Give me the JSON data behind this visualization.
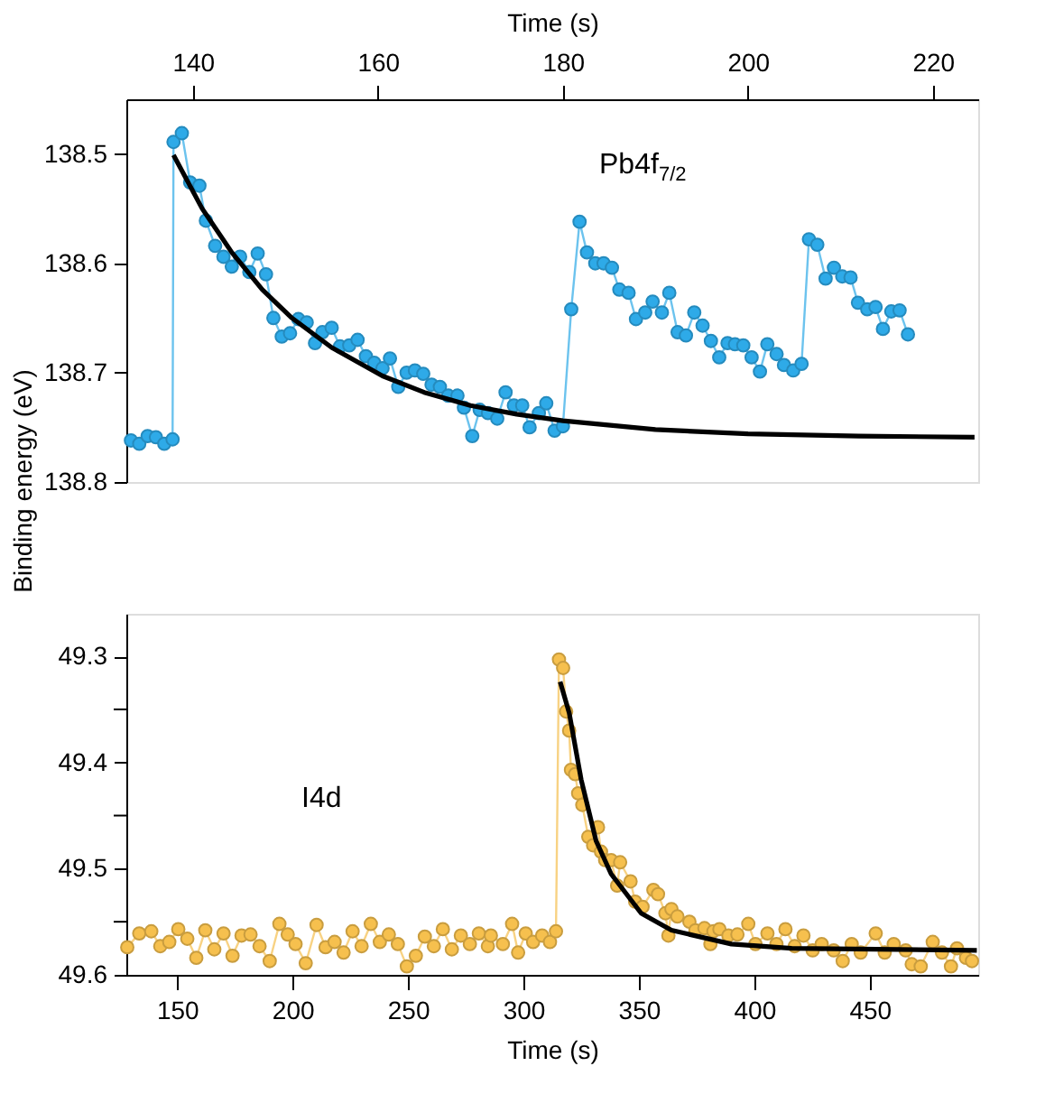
{
  "chart_data": [
    {
      "type": "line",
      "xlabel": "Time (s)",
      "ylabel": "Binding energy (eV)",
      "xlim": [
        132.8,
        224.9
      ],
      "xticks": [
        140,
        160,
        180,
        200,
        220
      ],
      "ylim": [
        138.8,
        138.45
      ],
      "yticks": [
        138.5,
        138.6,
        138.7,
        138.8
      ],
      "series": [
        {
          "name": "Pb4f$_{7/2}$",
          "color": "#2eaae8",
          "marker": "circle",
          "x": [
            133.3,
            134.2,
            135.1,
            136.0,
            136.9,
            137.8,
            137.9,
            138.8,
            139.7,
            140.7,
            141.4,
            142.4,
            143.3,
            144.2,
            145.1,
            146.1,
            147.0,
            147.9,
            148.7,
            149.6,
            150.5,
            151.4,
            152.3,
            153.2,
            154.0,
            155.0,
            155.9,
            156.9,
            157.8,
            158.7,
            159.6,
            160.5,
            161.3,
            162.2,
            163.1,
            164.0,
            164.9,
            165.8,
            166.7,
            167.6,
            168.6,
            169.3,
            170.2,
            171.0,
            171.9,
            172.9,
            173.8,
            174.7,
            175.6,
            176.4,
            177.4,
            178.2,
            179.1,
            180.0,
            180.9,
            181.8,
            182.6,
            183.5,
            184.4,
            185.3,
            186.1,
            187.1,
            187.9,
            188.9,
            189.7,
            190.7,
            191.5,
            192.4,
            193.3,
            194.2,
            195.1,
            196.0,
            196.9,
            197.8,
            198.6,
            199.5,
            200.4,
            201.3,
            202.1,
            203.1,
            203.9,
            204.9,
            205.8,
            206.6,
            207.5,
            208.4,
            209.3,
            210.2,
            211.1,
            211.9,
            212.9,
            213.8,
            214.6,
            215.5,
            216.4,
            217.3
          ],
          "values": [
            138.762,
            138.765,
            138.758,
            138.759,
            138.765,
            138.761,
            138.489,
            138.481,
            138.526,
            138.529,
            138.561,
            138.584,
            138.594,
            138.603,
            138.594,
            138.608,
            138.591,
            138.61,
            138.65,
            138.667,
            138.664,
            138.651,
            138.654,
            138.673,
            138.663,
            138.659,
            138.676,
            138.675,
            138.67,
            138.685,
            138.691,
            138.696,
            138.687,
            138.713,
            138.7,
            138.698,
            138.701,
            138.711,
            138.713,
            138.721,
            138.721,
            138.732,
            138.758,
            138.734,
            138.737,
            138.742,
            138.718,
            138.73,
            138.73,
            138.75,
            138.737,
            138.728,
            138.753,
            138.749,
            138.642,
            138.562,
            138.59,
            138.6,
            138.6,
            138.604,
            138.624,
            138.627,
            138.651,
            138.645,
            138.635,
            138.645,
            138.627,
            138.663,
            138.666,
            138.645,
            138.657,
            138.671,
            138.686,
            138.673,
            138.674,
            138.675,
            138.686,
            138.699,
            138.674,
            138.683,
            138.693,
            138.698,
            138.692,
            138.578,
            138.583,
            138.614,
            138.604,
            138.612,
            138.613,
            138.636,
            138.642,
            138.64,
            138.66,
            138.644,
            138.643,
            138.665
          ]
        },
        {
          "color": "#000000",
          "marker": "none",
          "x": [
            137.9,
            141,
            144.2,
            147.5,
            150.7,
            155,
            160.5,
            165,
            170,
            175,
            180,
            190,
            200,
            212,
            224.5
          ],
          "values": [
            138.501,
            138.55,
            138.59,
            138.624,
            138.65,
            138.677,
            138.703,
            138.718,
            138.73,
            138.738,
            138.744,
            138.752,
            138.756,
            138.758,
            138.759
          ]
        }
      ]
    },
    {
      "type": "line",
      "xlabel": "Time (s)",
      "xlim": [
        128,
        497
      ],
      "xticks": [
        150,
        200,
        250,
        300,
        350,
        400,
        450
      ],
      "ylim": [
        49.6,
        49.26
      ],
      "yticks": [
        49.3,
        {
          "value": 49.35,
          "label": null
        },
        49.4,
        {
          "value": 49.45,
          "label": null
        },
        49.5,
        {
          "value": 49.55,
          "label": null
        },
        49.6
      ],
      "series": [
        {
          "name": "I4d",
          "color": "#f6c04e",
          "marker": "circle",
          "x": [
            128.4,
            133.6,
            138.8,
            142.7,
            146.6,
            150.5,
            154.4,
            158.3,
            162.2,
            166.1,
            170.1,
            174.0,
            177.9,
            181.8,
            185.7,
            190.1,
            194.3,
            197.9,
            201.3,
            205.7,
            210.4,
            214.3,
            218.2,
            222.1,
            226.0,
            229.9,
            233.9,
            237.8,
            241.7,
            245.6,
            249.5,
            253.4,
            257.3,
            261.2,
            265.1,
            269.0,
            272.9,
            276.8,
            280.7,
            284.6,
            285.9,
            291.1,
            295.1,
            297.7,
            301.0,
            304.2,
            308.1,
            311.5,
            314.1,
            315.4,
            317.2,
            318.5,
            319.8,
            320.6,
            322.4,
            323.7,
            325.5,
            328.1,
            330.2,
            332.3,
            333.6,
            335.4,
            338.0,
            340.6,
            341.9,
            346.4,
            348.4,
            351.6,
            356.3,
            358.3,
            361.5,
            362.8,
            364.1,
            366.7,
            371.9,
            374.5,
            378.4,
            381.0,
            382.3,
            384.9,
            388.8,
            392.7,
            397.4,
            400.5,
            405.7,
            409.6,
            413.5,
            417.5,
            421.3,
            425.3,
            429.2,
            434.4,
            438.3,
            442.2,
            446.1,
            452.6,
            456.5,
            460.4,
            465.6,
            468.2,
            472.1,
            477.3,
            481.3,
            485.2,
            487.8,
            491.7,
            494.3
          ],
          "values": [
            49.574,
            49.561,
            49.559,
            49.573,
            49.569,
            49.557,
            49.566,
            49.584,
            49.558,
            49.576,
            49.561,
            49.582,
            49.563,
            49.562,
            49.573,
            49.587,
            49.552,
            49.562,
            49.571,
            49.589,
            49.553,
            49.574,
            49.569,
            49.579,
            49.559,
            49.573,
            49.552,
            49.569,
            49.562,
            49.571,
            49.592,
            49.582,
            49.564,
            49.573,
            49.557,
            49.576,
            49.563,
            49.571,
            49.561,
            49.573,
            49.563,
            49.571,
            49.552,
            49.579,
            49.561,
            49.569,
            49.563,
            49.569,
            49.559,
            49.303,
            49.311,
            49.352,
            49.37,
            49.407,
            49.411,
            49.429,
            49.44,
            49.47,
            49.478,
            49.461,
            49.484,
            49.492,
            49.492,
            49.516,
            49.494,
            49.512,
            49.531,
            49.536,
            49.52,
            49.524,
            49.542,
            49.563,
            49.538,
            49.545,
            49.55,
            49.558,
            49.556,
            49.571,
            49.559,
            49.557,
            49.563,
            49.562,
            49.552,
            49.571,
            49.561,
            49.571,
            49.557,
            49.573,
            49.563,
            49.577,
            49.571,
            49.577,
            49.587,
            49.571,
            49.579,
            49.561,
            49.579,
            49.571,
            49.577,
            49.59,
            49.592,
            49.569,
            49.579,
            49.592,
            49.575,
            49.584,
            49.587
          ]
        },
        {
          "color": "#000000",
          "marker": "none",
          "x": [
            315.9,
            319.8,
            325.0,
            331.5,
            338.0,
            351.0,
            364.1,
            390.1,
            416.2,
            496.4
          ],
          "values": [
            49.324,
            49.353,
            49.416,
            49.474,
            49.505,
            49.542,
            49.558,
            49.571,
            49.575,
            49.577
          ]
        }
      ]
    }
  ]
}
